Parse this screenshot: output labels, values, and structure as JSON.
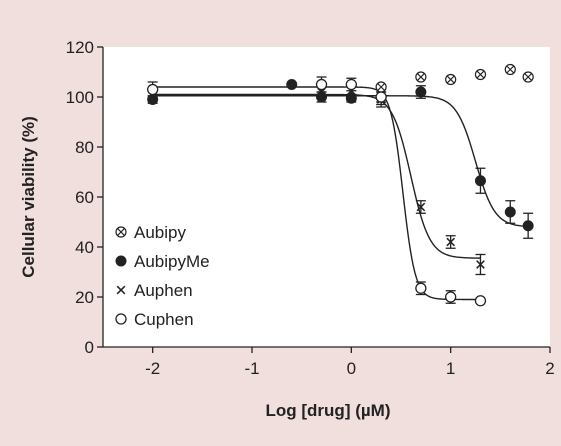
{
  "colors": {
    "background": "#f1dfde",
    "plot_area": "#ffffff",
    "ink": "#222222"
  },
  "chart_data": {
    "type": "scatter",
    "title": "",
    "xlabel": "Log [drug] (µM)",
    "ylabel": "Cellular viability  (%)",
    "xlim": [
      -2.5,
      2
    ],
    "ylim": [
      0,
      120
    ],
    "x_ticks": [
      -2,
      -1,
      0,
      1,
      2
    ],
    "x_tick_labels": [
      "-2",
      "-1",
      "0",
      "1",
      "2"
    ],
    "y_ticks": [
      0,
      20,
      40,
      60,
      80,
      100,
      120
    ],
    "y_tick_labels": [
      "0",
      "20",
      "40",
      "60",
      "80",
      "100",
      "120"
    ],
    "grid": false,
    "legend_position": "bottom-left",
    "series": [
      {
        "name": "Aubipy",
        "marker": "circle-x",
        "points": [
          {
            "x": 0.3,
            "y": 104
          },
          {
            "x": 0.7,
            "y": 108
          },
          {
            "x": 1.0,
            "y": 107
          },
          {
            "x": 1.3,
            "y": 109
          },
          {
            "x": 1.6,
            "y": 111
          },
          {
            "x": 1.78,
            "y": 108
          }
        ],
        "fit": null
      },
      {
        "name": "AubipyMe",
        "marker": "filled-circle",
        "points": [
          {
            "x": -2.0,
            "y": 99,
            "err": 1.5
          },
          {
            "x": -0.6,
            "y": 105,
            "err": 0
          },
          {
            "x": -0.3,
            "y": 100,
            "err": 2
          },
          {
            "x": 0.0,
            "y": 99.5,
            "err": 1.5
          },
          {
            "x": 0.3,
            "y": 100,
            "err": 2
          },
          {
            "x": 0.7,
            "y": 102,
            "err": 2.5
          },
          {
            "x": 1.3,
            "y": 66.5,
            "err": 5
          },
          {
            "x": 1.6,
            "y": 54,
            "err": 4.5
          },
          {
            "x": 1.78,
            "y": 48.5,
            "err": 5
          }
        ],
        "fit": {
          "top": 100.5,
          "bottom": 48,
          "logEC50": 1.25,
          "hill": 4.5,
          "x_range": [
            -2,
            1.78
          ]
        }
      },
      {
        "name": "Auphen",
        "marker": "x",
        "points": [
          {
            "x": -2.0,
            "y": 101,
            "err": 2
          },
          {
            "x": -0.3,
            "y": 102,
            "err": 2.5
          },
          {
            "x": 0.0,
            "y": 102.5,
            "err": 2.5
          },
          {
            "x": 0.3,
            "y": 99,
            "err": 3
          },
          {
            "x": 0.7,
            "y": 56,
            "err": 2.5
          },
          {
            "x": 1.0,
            "y": 42,
            "err": 2.5
          },
          {
            "x": 1.3,
            "y": 33,
            "err": 4
          }
        ],
        "fit": {
          "top": 101,
          "bottom": 35.5,
          "logEC50": 0.6,
          "hill": 4.6,
          "x_range": [
            -2,
            1.3
          ]
        }
      },
      {
        "name": "Cuphen",
        "marker": "open-circle",
        "points": [
          {
            "x": -2.0,
            "y": 103,
            "err": 3
          },
          {
            "x": -0.3,
            "y": 105,
            "err": 3
          },
          {
            "x": 0.0,
            "y": 105,
            "err": 2.5
          },
          {
            "x": 0.3,
            "y": 100,
            "err": 3
          },
          {
            "x": 0.7,
            "y": 23.5,
            "err": 2.5
          },
          {
            "x": 1.0,
            "y": 20,
            "err": 2.5
          },
          {
            "x": 1.3,
            "y": 18.5,
            "err": 0
          }
        ],
        "fit": {
          "top": 104,
          "bottom": 19,
          "logEC50": 0.52,
          "hill": 7,
          "x_range": [
            -2,
            1.3
          ]
        }
      }
    ]
  }
}
